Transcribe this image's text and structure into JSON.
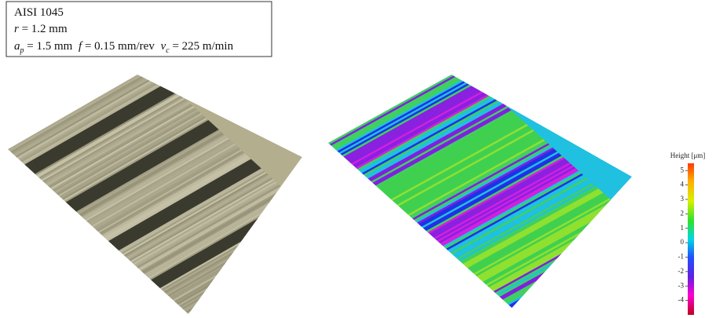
{
  "info": {
    "material": "AISI 1045",
    "params": [
      {
        "symbol": "r",
        "text": "= 1.2 mm"
      },
      {
        "symbol": "a",
        "sub": "p",
        "text": "= 1.5 mm"
      },
      {
        "symbol": "f",
        "text": "= 0.15 mm/rev"
      },
      {
        "symbol": "v",
        "sub": "c",
        "text": "= 225 m/min"
      }
    ]
  },
  "colorbar": {
    "title": "Height [μm]",
    "range": [
      -5,
      5.5
    ],
    "ticks": [
      5,
      4,
      3,
      2,
      1,
      0,
      -1,
      -2,
      -3,
      -4
    ]
  }
}
